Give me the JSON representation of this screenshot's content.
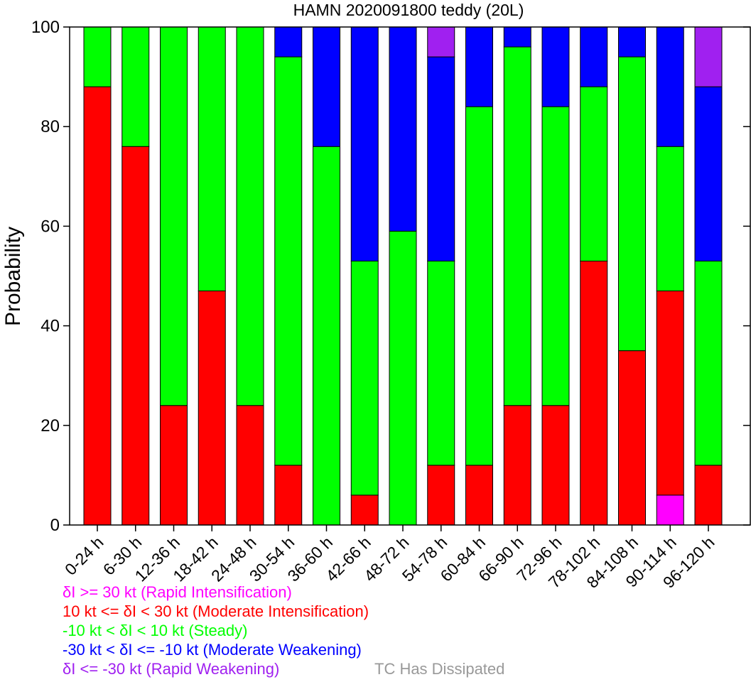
{
  "chart_data": {
    "type": "bar",
    "stacked": true,
    "title": "HAMN 2020091800 teddy (20L)",
    "ylabel": "Probability",
    "xlabel": "",
    "ylim": [
      0,
      100
    ],
    "yticks": [
      "0",
      "20",
      "40",
      "60",
      "80",
      "100"
    ],
    "grid": false,
    "categories": [
      "0-24 h",
      "6-30 h",
      "12-36 h",
      "18-42 h",
      "24-48 h",
      "30-54 h",
      "36-60 h",
      "42-66 h",
      "48-72 h",
      "54-78 h",
      "60-84 h",
      "66-90 h",
      "72-96 h",
      "78-102 h",
      "84-108 h",
      "90-114 h",
      "96-120 h"
    ],
    "series": [
      {
        "key": "ri",
        "color": "#ff00ff",
        "values": [
          0,
          0,
          0,
          0,
          0,
          0,
          0,
          0,
          0,
          0,
          0,
          0,
          0,
          0,
          0,
          6,
          0
        ]
      },
      {
        "key": "mi",
        "color": "#ff0000",
        "values": [
          88,
          76,
          24,
          47,
          24,
          12,
          0,
          6,
          0,
          12,
          12,
          24,
          24,
          53,
          35,
          41,
          12
        ]
      },
      {
        "key": "steady",
        "color": "#00ff00",
        "values": [
          12,
          24,
          76,
          53,
          76,
          82,
          76,
          47,
          59,
          41,
          72,
          72,
          60,
          35,
          59,
          29,
          41
        ]
      },
      {
        "key": "mw",
        "color": "#0000ff",
        "values": [
          0,
          0,
          0,
          0,
          0,
          6,
          24,
          47,
          41,
          41,
          16,
          4,
          16,
          12,
          6,
          24,
          35
        ]
      },
      {
        "key": "rw",
        "color": "#a020f0",
        "values": [
          0,
          0,
          0,
          0,
          0,
          0,
          0,
          0,
          0,
          6,
          0,
          0,
          0,
          0,
          0,
          0,
          12
        ]
      }
    ]
  },
  "legend": [
    {
      "text": "δI >= 30 kt (Rapid Intensification)",
      "color": "#ff00ff"
    },
    {
      "text": "10 kt <= δI < 30 kt (Moderate Intensification)",
      "color": "#ff0000"
    },
    {
      "text": "-10 kt < δI < 10 kt (Steady)",
      "color": "#00ff00"
    },
    {
      "text": "-30 kt < δI <= -10 kt (Moderate Weakening)",
      "color": "#0000ff"
    },
    {
      "text": "δI <= -30 kt (Rapid Weakening)",
      "color": "#a020f0"
    }
  ],
  "dissipated_note": {
    "text": "TC Has Dissipated",
    "color": "#999999"
  }
}
